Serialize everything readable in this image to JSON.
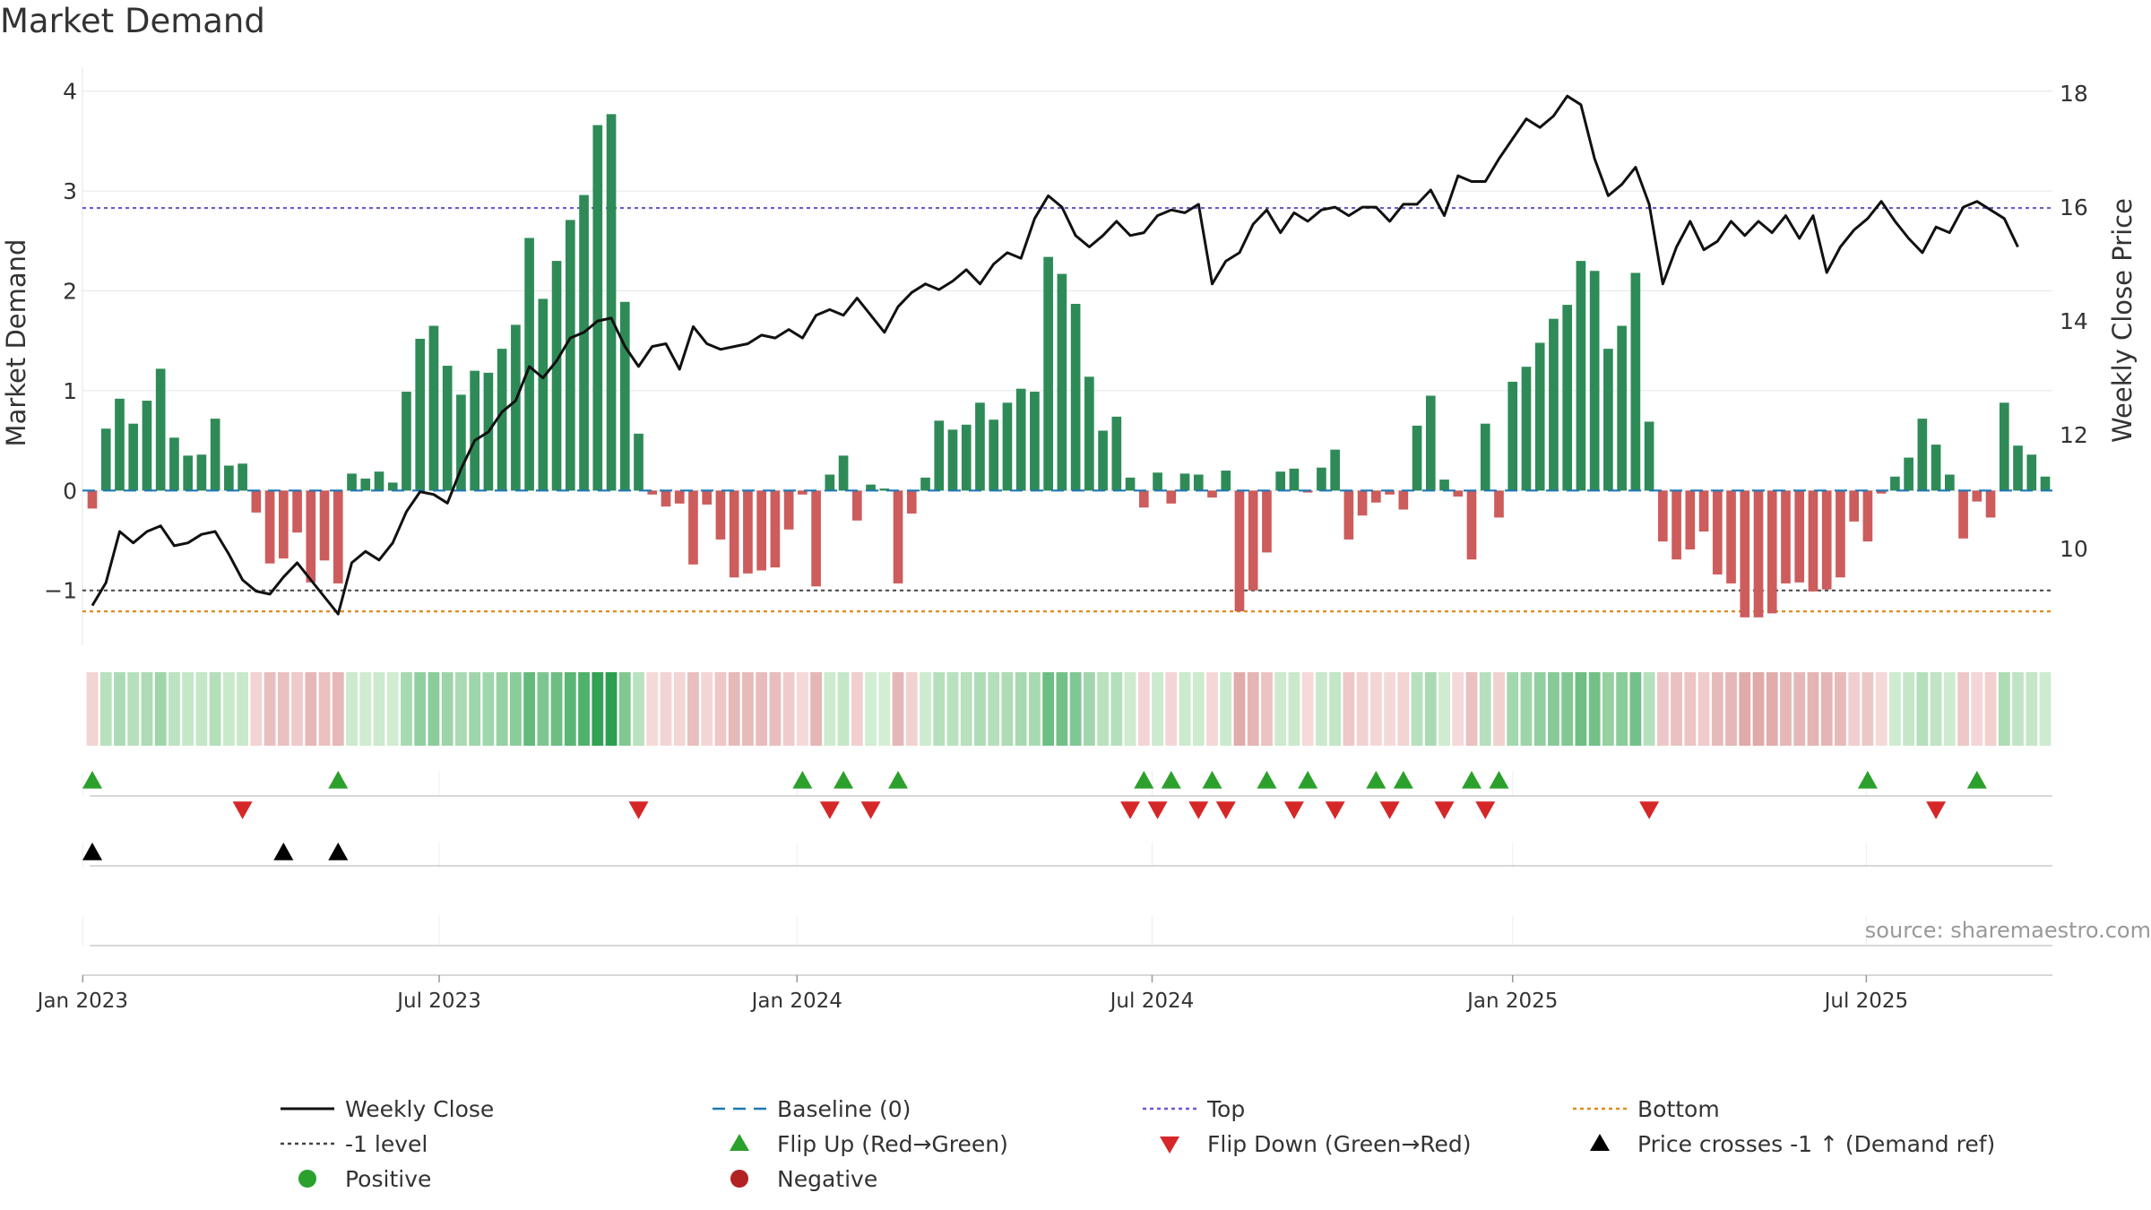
{
  "title": "Market Demand",
  "watermark": "source: sharemaestro.com",
  "colors": {
    "positive": "#2e8b57",
    "negative": "#cd5c5c",
    "price": "#111111",
    "baseline": "#1f77b4",
    "top": "#6a5acd",
    "bottom": "#e08a1e",
    "minus1": "#444444",
    "flip_up": "#2ca02c",
    "flip_down": "#d62728",
    "cross": "#000000",
    "legend_positive": "#2ca02c",
    "legend_negative": "#b22222"
  },
  "chart_data": {
    "type": "bar",
    "title": "Market Demand",
    "ylabel": "Market Demand",
    "y2label": "Weekly Close Price",
    "ylim": [
      -1.55,
      4.15
    ],
    "y2lim": [
      8.3,
      18.3
    ],
    "yticks": [
      -1,
      0,
      1,
      2,
      3,
      4
    ],
    "ytick_labels": [
      "−1",
      "0",
      "1",
      "2",
      "3",
      "4"
    ],
    "y2ticks": [
      10,
      12,
      14,
      16,
      18
    ],
    "xtick_labels": [
      "Jan 2023",
      "Jul 2023",
      "Jan 2024",
      "Jul 2024",
      "Jan 2025",
      "Jul 2025"
    ],
    "xtick_weeks": [
      0.3,
      26.4,
      52.6,
      78.6,
      105,
      130.9
    ],
    "grid": true,
    "legend_position": "bottom",
    "reference_lines": {
      "baseline": 0,
      "top": 2.83,
      "bottom": -1.21,
      "minus1": -1.0
    },
    "demand": [
      -0.18,
      0.62,
      0.92,
      0.67,
      0.9,
      1.22,
      0.53,
      0.35,
      0.36,
      0.72,
      0.25,
      0.27,
      -0.22,
      -0.73,
      -0.68,
      -0.42,
      -0.92,
      -0.7,
      -0.93,
      0.17,
      0.12,
      0.19,
      0.08,
      0.99,
      1.52,
      1.65,
      1.25,
      0.96,
      1.2,
      1.18,
      1.42,
      1.66,
      2.53,
      1.92,
      2.3,
      2.71,
      2.96,
      3.66,
      3.77,
      1.89,
      0.57,
      -0.04,
      -0.16,
      -0.13,
      -0.74,
      -0.14,
      -0.49,
      -0.87,
      -0.83,
      -0.8,
      -0.77,
      -0.39,
      -0.04,
      -0.96,
      0.16,
      0.35,
      -0.3,
      0.06,
      0.02,
      -0.93,
      -0.23,
      0.13,
      0.7,
      0.61,
      0.66,
      0.88,
      0.71,
      0.88,
      1.02,
      0.99,
      2.34,
      2.17,
      1.87,
      1.14,
      0.6,
      0.74,
      0.13,
      -0.17,
      0.18,
      -0.13,
      0.17,
      0.16,
      -0.07,
      0.2,
      -1.21,
      -1.0,
      -0.62,
      0.19,
      0.22,
      -0.02,
      0.23,
      0.41,
      -0.49,
      -0.25,
      -0.12,
      -0.04,
      -0.19,
      0.65,
      0.95,
      0.11,
      -0.06,
      -0.69,
      0.67,
      -0.27,
      1.09,
      1.24,
      1.48,
      1.72,
      1.86,
      2.3,
      2.2,
      1.42,
      1.65,
      2.18,
      0.69,
      -0.51,
      -0.69,
      -0.59,
      -0.41,
      -0.84,
      -0.93,
      -1.27,
      -1.27,
      -1.23,
      -0.93,
      -0.92,
      -1.01,
      -0.99,
      -0.87,
      -0.31,
      -0.51,
      -0.03,
      0.14,
      0.33,
      0.72,
      0.46,
      0.16,
      -0.48,
      -0.11,
      -0.27,
      0.88,
      0.45,
      0.36,
      0.14
    ],
    "price": [
      9.0,
      9.4,
      10.3,
      10.1,
      10.3,
      10.4,
      10.05,
      10.1,
      10.25,
      10.3,
      9.9,
      9.45,
      9.25,
      9.2,
      9.5,
      9.75,
      9.45,
      9.15,
      8.85,
      9.75,
      9.95,
      9.8,
      10.1,
      10.65,
      11.0,
      10.95,
      10.8,
      11.4,
      11.9,
      12.05,
      12.4,
      12.6,
      13.2,
      13.0,
      13.3,
      13.7,
      13.8,
      14.0,
      14.05,
      13.55,
      13.2,
      13.55,
      13.6,
      13.15,
      13.9,
      13.6,
      13.5,
      13.55,
      13.6,
      13.75,
      13.7,
      13.85,
      13.7,
      14.1,
      14.2,
      14.1,
      14.4,
      14.1,
      13.8,
      14.25,
      14.5,
      14.65,
      14.55,
      14.7,
      14.9,
      14.65,
      15.0,
      15.2,
      15.1,
      15.8,
      16.2,
      16.0,
      15.5,
      15.3,
      15.5,
      15.75,
      15.5,
      15.55,
      15.85,
      15.95,
      15.9,
      16.05,
      14.65,
      15.05,
      15.2,
      15.7,
      15.95,
      15.55,
      15.9,
      15.75,
      15.95,
      16.0,
      15.85,
      16.0,
      16.0,
      15.75,
      16.05,
      16.05,
      16.3,
      15.85,
      16.55,
      16.45,
      16.45,
      16.85,
      17.2,
      17.55,
      17.4,
      17.6,
      17.95,
      17.8,
      16.85,
      16.2,
      16.4,
      16.7,
      16.05,
      14.65,
      15.3,
      15.75,
      15.25,
      15.4,
      15.75,
      15.5,
      15.75,
      15.55,
      15.85,
      15.45,
      15.85,
      14.85,
      15.3,
      15.6,
      15.8,
      16.1,
      15.75,
      15.45,
      15.2,
      15.65,
      15.55,
      16.0,
      16.1,
      15.95,
      15.8,
      15.3
    ],
    "flip_up_weeks": [
      1,
      19,
      53,
      56,
      60,
      78,
      80,
      83,
      87,
      90,
      95,
      97,
      102,
      104,
      131,
      139
    ],
    "flip_down_weeks": [
      12,
      41,
      55,
      58,
      77,
      79,
      82,
      84,
      89,
      92,
      96,
      100,
      103,
      115,
      136
    ],
    "cross_weeks": [
      1,
      15,
      19
    ]
  },
  "legend": [
    {
      "label": "Weekly Close",
      "marker": "line-solid",
      "color": "#111111"
    },
    {
      "label": "Baseline (0)",
      "marker": "line-dash",
      "color": "#1f77b4"
    },
    {
      "label": "Top",
      "marker": "line-dot",
      "color": "#6a5acd"
    },
    {
      "label": "Bottom",
      "marker": "line-dot",
      "color": "#e08a1e"
    },
    {
      "label": "-1 level",
      "marker": "line-dot",
      "color": "#444444"
    },
    {
      "label": "Flip Up (Red→Green)",
      "marker": "triangle-up-icon",
      "color": "#2ca02c"
    },
    {
      "label": "Flip Down (Green→Red)",
      "marker": "triangle-down-icon",
      "color": "#d62728"
    },
    {
      "label": "Price crosses -1 ↑ (Demand ref)",
      "marker": "triangle-up-icon",
      "color": "#000000"
    },
    {
      "label": "Positive",
      "marker": "circle-icon",
      "color": "#2ca02c"
    },
    {
      "label": "Negative",
      "marker": "circle-icon",
      "color": "#b22222"
    }
  ]
}
